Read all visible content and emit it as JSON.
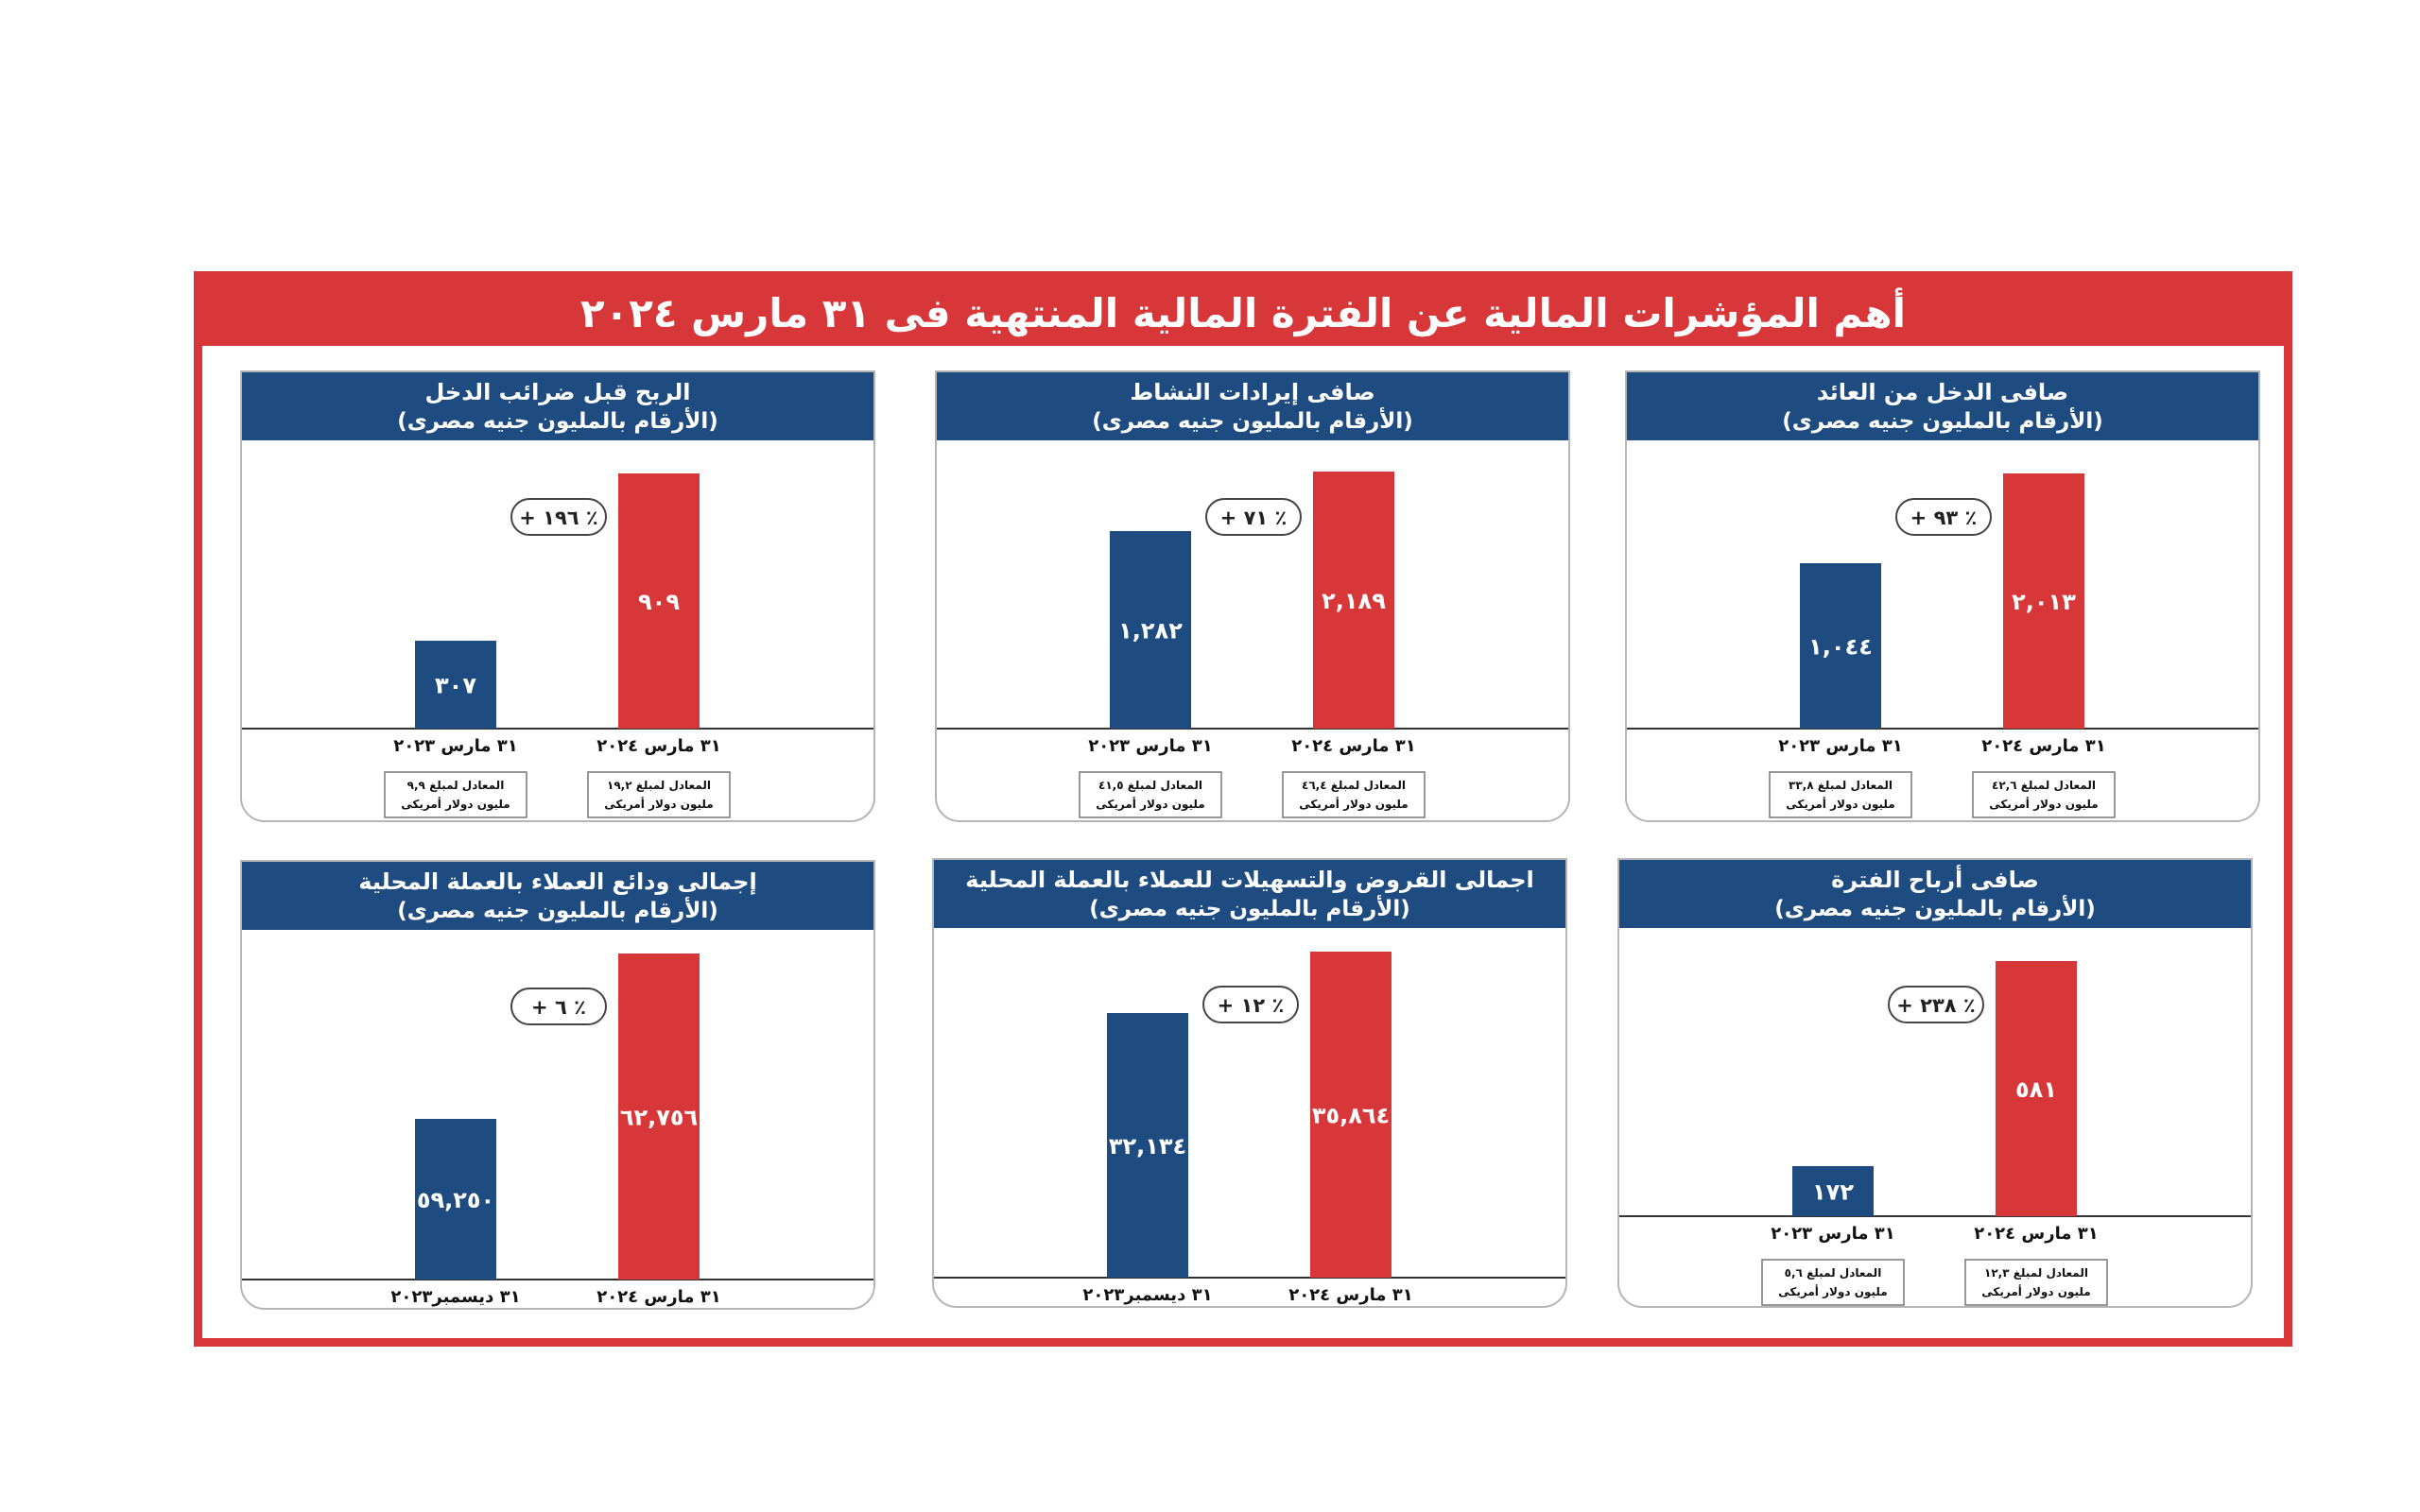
{
  "title": "أهم المؤشرات المالية عن الفترة المالية المنتهية فى ٣١ مارس ٢٠٢٤",
  "colors": {
    "frame": "#d8373a",
    "header": "#1e4b80",
    "bar_prior": "#1e4b80",
    "bar_current": "#d8373a"
  },
  "chart_data": [
    {
      "type": "bar",
      "title": "صافى الدخل من العائد",
      "subtitle": "(الأرقام بالمليون جنيه مصرى)",
      "categories": [
        "٣١ مارس ٢٠٢٣",
        "٣١ مارس ٢٠٢٤"
      ],
      "values": [
        1044,
        2013
      ],
      "value_labels": [
        "١,٠٤٤",
        "٢,٠١٣"
      ],
      "change_label": "+ ٩٣ ٪",
      "usd_notes": [
        [
          "المعادل لمبلغ ٣٣,٨",
          "مليون دولار أمريكى"
        ],
        [
          "المعادل لمبلغ ٤٢,٦",
          "مليون دولار أمريكى"
        ]
      ]
    },
    {
      "type": "bar",
      "title": "صافى إيرادات النشاط",
      "subtitle": "(الأرقام بالمليون جنيه مصرى)",
      "categories": [
        "٣١ مارس ٢٠٢٣",
        "٣١ مارس ٢٠٢٤"
      ],
      "values": [
        1282,
        2189
      ],
      "value_labels": [
        "١,٢٨٢",
        "٢,١٨٩"
      ],
      "change_label": "+ ٧١ ٪",
      "usd_notes": [
        [
          "المعادل لمبلغ ٤١,٥",
          "مليون دولار أمريكى"
        ],
        [
          "المعادل لمبلغ ٤٦,٤",
          "مليون دولار أمريكى"
        ]
      ]
    },
    {
      "type": "bar",
      "title": "الربح قبل ضرائب الدخل",
      "subtitle": "(الأرقام بالمليون جنيه مصرى)",
      "categories": [
        "٣١ مارس ٢٠٢٣",
        "٣١ مارس ٢٠٢٤"
      ],
      "values": [
        307,
        909
      ],
      "value_labels": [
        "٣٠٧",
        "٩٠٩"
      ],
      "change_label": "+ ١٩٦ ٪",
      "usd_notes": [
        [
          "المعادل لمبلغ ٩,٩",
          "مليون دولار أمريكى"
        ],
        [
          "المعادل لمبلغ ١٩,٢",
          "مليون دولار أمريكى"
        ]
      ]
    },
    {
      "type": "bar",
      "title": "صافى أرباح الفترة",
      "subtitle": "(الأرقام بالمليون جنيه مصرى)",
      "categories": [
        "٣١ مارس ٢٠٢٣",
        "٣١ مارس ٢٠٢٤"
      ],
      "values": [
        172,
        581
      ],
      "value_labels": [
        "١٧٢",
        "٥٨١"
      ],
      "change_label": "+ ٢٣٨ ٪",
      "usd_notes": [
        [
          "المعادل لمبلغ ٥,٦",
          "مليون دولار أمريكى"
        ],
        [
          "المعادل لمبلغ ١٢,٣",
          "مليون دولار أمريكى"
        ]
      ]
    },
    {
      "type": "bar",
      "title": "اجمالى القروض والتسهيلات للعملاء بالعملة المحلية",
      "subtitle": "(الأرقام بالمليون جنيه مصرى)",
      "categories": [
        "٣١ ديسمبر٢٠٢٣",
        "٣١ مارس ٢٠٢٤"
      ],
      "values": [
        32134,
        35864
      ],
      "value_labels": [
        "٣٢,١٣٤",
        "٣٥,٨٦٤"
      ],
      "change_label": "+ ١٢ ٪"
    },
    {
      "type": "bar",
      "title": "إجمالى ودائع العملاء بالعملة المحلية",
      "subtitle": "(الأرقام بالمليون جنيه مصرى)",
      "categories": [
        "٣١ ديسمبر٢٠٢٣",
        "٣١ مارس ٢٠٢٤"
      ],
      "values": [
        59250,
        62756
      ],
      "value_labels": [
        "٥٩,٢٥٠",
        "٦٢,٧٥٦"
      ],
      "change_label": "+ ٦ ٪"
    }
  ]
}
